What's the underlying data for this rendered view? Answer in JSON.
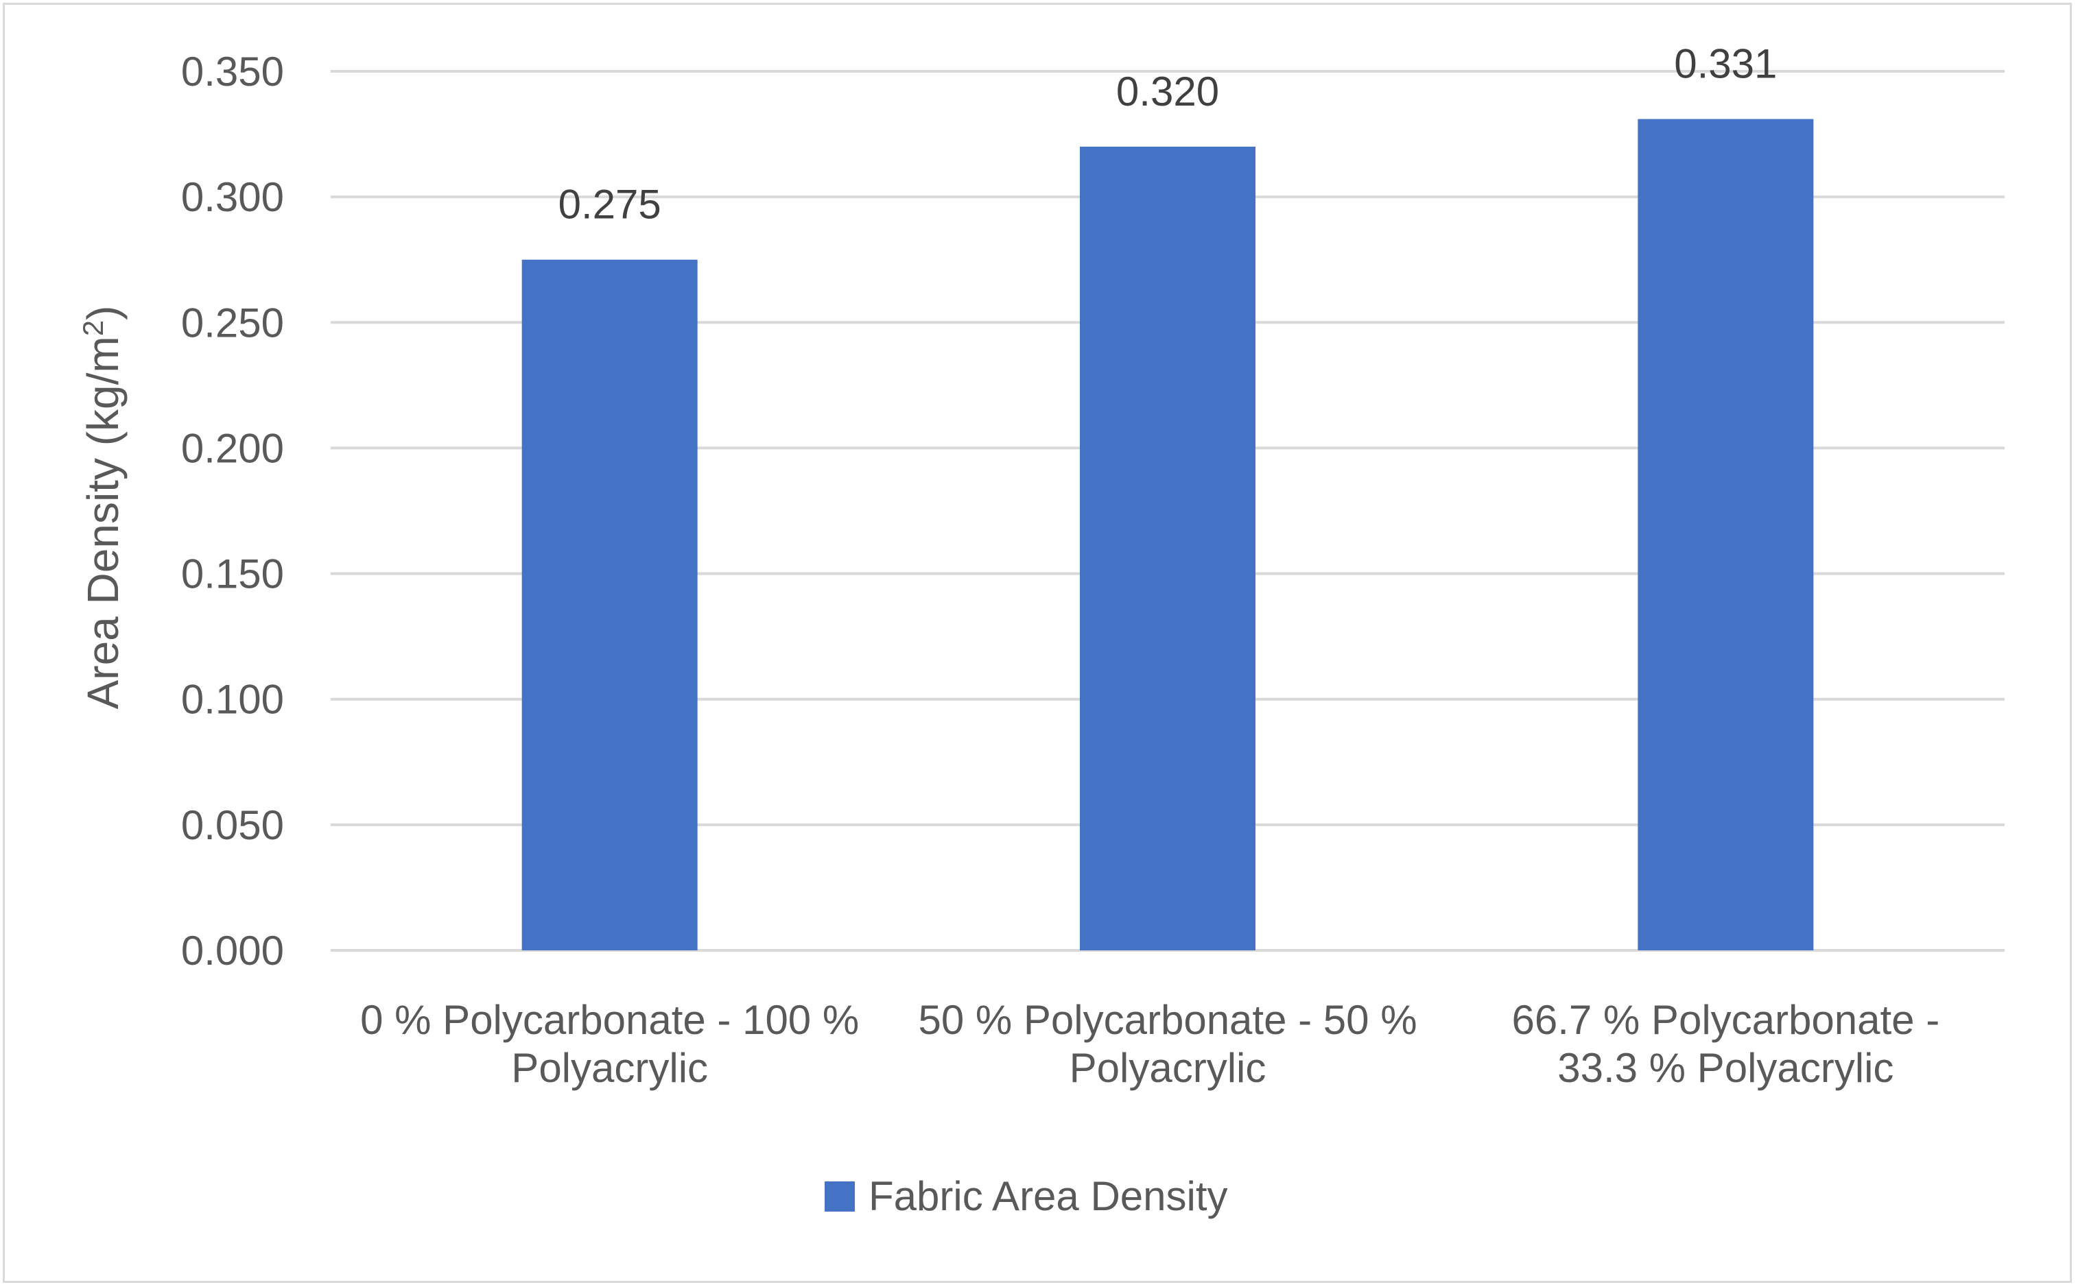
{
  "chart_data": {
    "type": "bar",
    "categories": [
      [
        "0 % Polycarbonate - 100 %",
        "Polyacrylic"
      ],
      [
        "50 % Polycarbonate - 50 %",
        "Polyacrylic"
      ],
      [
        "66.7 % Polycarbonate -",
        "33.3  % Polyacrylic"
      ]
    ],
    "series": [
      {
        "name": "Fabric Area Density",
        "values": [
          0.275,
          0.32,
          0.331
        ],
        "color": "#4472c4"
      }
    ],
    "data_labels": [
      "0.275",
      "0.320",
      "0.331"
    ],
    "ylabel": "Area Density (kg/m",
    "ylabel_sup": "2",
    "ylabel_end": ")",
    "ylim": [
      0,
      0.35
    ],
    "yticks": [
      "0.000",
      "0.050",
      "0.100",
      "0.150",
      "0.200",
      "0.250",
      "0.300",
      "0.350"
    ],
    "grid": true,
    "legend": "bottom"
  }
}
